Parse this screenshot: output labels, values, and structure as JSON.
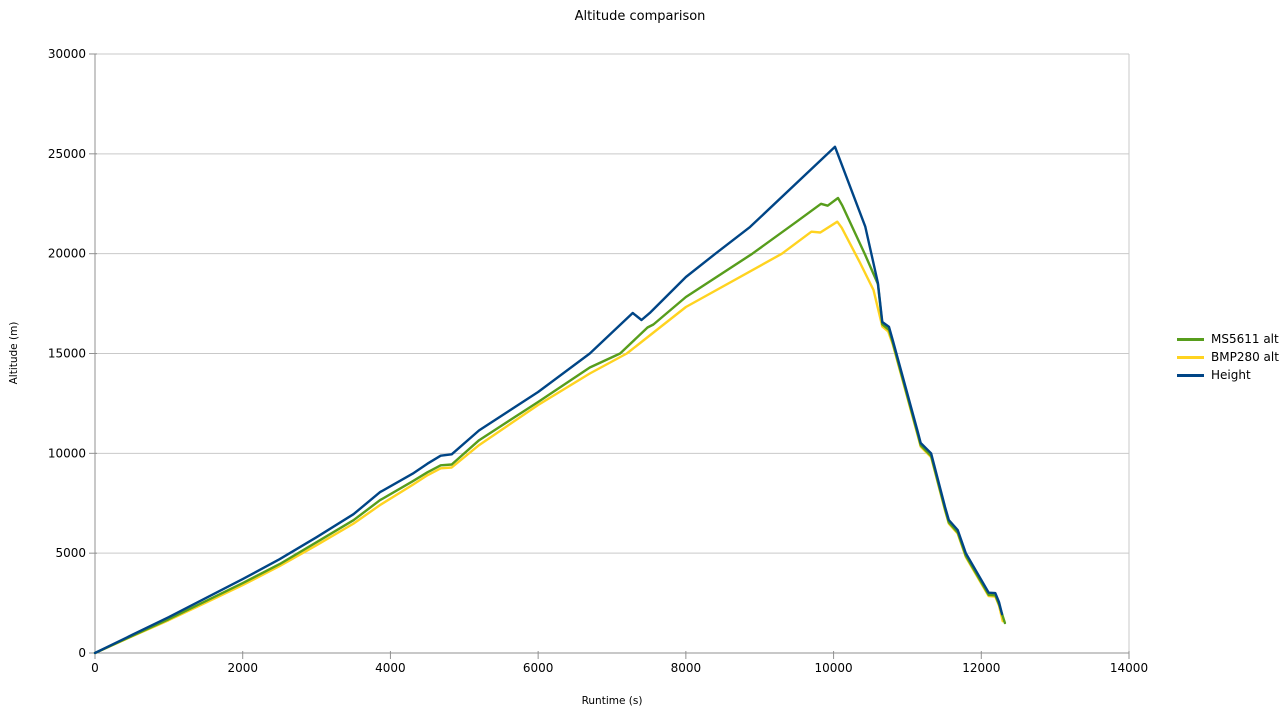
{
  "chart_data": {
    "type": "line",
    "title": "Altitude comparison",
    "xlabel": "Runtime (s)",
    "ylabel": "Altitude (m)",
    "xlim": [
      0,
      14000
    ],
    "ylim": [
      0,
      30000
    ],
    "x_tick_step": 2000,
    "y_tick_step": 5000,
    "grid": "horizontal",
    "legend_position": "right",
    "series": [
      {
        "name": "MS5611 alt",
        "color": "#579D1C",
        "points": [
          [
            0,
            0
          ],
          [
            500,
            850
          ],
          [
            1000,
            1700
          ],
          [
            1500,
            2600
          ],
          [
            2000,
            3500
          ],
          [
            2500,
            4450
          ],
          [
            3000,
            5550
          ],
          [
            3500,
            6650
          ],
          [
            3860,
            7660
          ],
          [
            4300,
            8600
          ],
          [
            4500,
            9050
          ],
          [
            4680,
            9400
          ],
          [
            4830,
            9440
          ],
          [
            5200,
            10660
          ],
          [
            6000,
            12570
          ],
          [
            6700,
            14300
          ],
          [
            7110,
            15000
          ],
          [
            7480,
            16300
          ],
          [
            7560,
            16450
          ],
          [
            8000,
            17830
          ],
          [
            8900,
            20000
          ],
          [
            9500,
            21600
          ],
          [
            9830,
            22500
          ],
          [
            9920,
            22400
          ],
          [
            10060,
            22790
          ],
          [
            10120,
            22400
          ],
          [
            10430,
            19930
          ],
          [
            10600,
            18480
          ],
          [
            10660,
            16460
          ],
          [
            10750,
            16180
          ],
          [
            10800,
            15550
          ],
          [
            11140,
            10950
          ],
          [
            11180,
            10400
          ],
          [
            11320,
            9870
          ],
          [
            11510,
            7180
          ],
          [
            11560,
            6540
          ],
          [
            11680,
            6040
          ],
          [
            11790,
            4870
          ],
          [
            12100,
            2910
          ],
          [
            12190,
            2890
          ],
          [
            12240,
            2440
          ],
          [
            12320,
            1500
          ]
        ]
      },
      {
        "name": "BMP280 alt",
        "color": "#FFD320",
        "points": [
          [
            0,
            0
          ],
          [
            500,
            830
          ],
          [
            1000,
            1650
          ],
          [
            1500,
            2520
          ],
          [
            2000,
            3400
          ],
          [
            2500,
            4350
          ],
          [
            3000,
            5400
          ],
          [
            3500,
            6480
          ],
          [
            3860,
            7410
          ],
          [
            4300,
            8420
          ],
          [
            4500,
            8900
          ],
          [
            4680,
            9250
          ],
          [
            4830,
            9290
          ],
          [
            5200,
            10410
          ],
          [
            6000,
            12420
          ],
          [
            6700,
            14000
          ],
          [
            7200,
            15000
          ],
          [
            8000,
            17330
          ],
          [
            9300,
            20000
          ],
          [
            9700,
            21100
          ],
          [
            9820,
            21060
          ],
          [
            10050,
            21600
          ],
          [
            10110,
            21300
          ],
          [
            10360,
            19530
          ],
          [
            10540,
            18180
          ],
          [
            10660,
            16350
          ],
          [
            10740,
            16100
          ],
          [
            10800,
            15470
          ],
          [
            11140,
            10880
          ],
          [
            11180,
            10330
          ],
          [
            11320,
            9810
          ],
          [
            11510,
            7120
          ],
          [
            11560,
            6480
          ],
          [
            11680,
            5980
          ],
          [
            11790,
            4810
          ],
          [
            12100,
            2850
          ],
          [
            12190,
            2830
          ],
          [
            12240,
            2380
          ],
          [
            12290,
            1600
          ]
        ]
      },
      {
        "name": "Height",
        "color": "#004586",
        "points": [
          [
            0,
            0
          ],
          [
            500,
            900
          ],
          [
            1000,
            1800
          ],
          [
            1500,
            2750
          ],
          [
            2000,
            3700
          ],
          [
            2500,
            4700
          ],
          [
            3000,
            5800
          ],
          [
            3500,
            6950
          ],
          [
            3860,
            8060
          ],
          [
            4300,
            8980
          ],
          [
            4500,
            9480
          ],
          [
            4680,
            9880
          ],
          [
            4830,
            9950
          ],
          [
            5200,
            11150
          ],
          [
            6000,
            13070
          ],
          [
            6700,
            15000
          ],
          [
            7280,
            17030
          ],
          [
            7400,
            16680
          ],
          [
            7520,
            17060
          ],
          [
            8000,
            18830
          ],
          [
            8400,
            20000
          ],
          [
            8870,
            21340
          ],
          [
            10020,
            25350
          ],
          [
            10430,
            21350
          ],
          [
            10600,
            18530
          ],
          [
            10660,
            16580
          ],
          [
            10750,
            16330
          ],
          [
            10800,
            15680
          ],
          [
            11140,
            11070
          ],
          [
            11180,
            10520
          ],
          [
            11320,
            10000
          ],
          [
            11510,
            7300
          ],
          [
            11560,
            6660
          ],
          [
            11680,
            6160
          ],
          [
            11790,
            5000
          ],
          [
            12100,
            3020
          ],
          [
            12190,
            3000
          ],
          [
            12240,
            2550
          ],
          [
            12280,
            1950
          ]
        ]
      }
    ],
    "draw_order": [
      "BMP280 alt",
      "MS5611 alt",
      "Height"
    ]
  },
  "colors": {
    "background": "#FFFFFF",
    "gridline": "#C9C9C9",
    "axis": "#919191",
    "text": "#000000"
  }
}
